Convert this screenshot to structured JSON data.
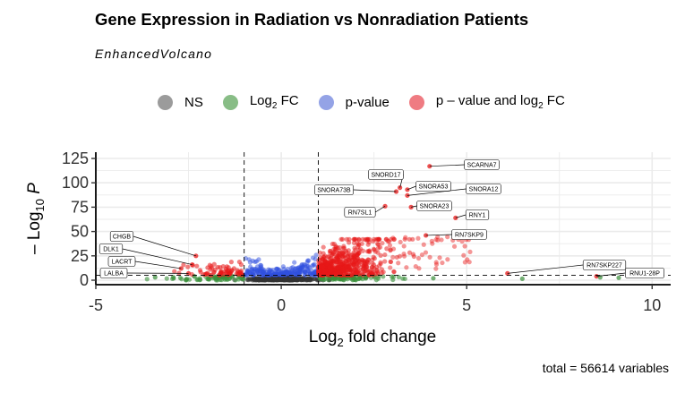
{
  "title": "Gene Expression in Radiation vs Nonradiation Patients",
  "subtitle": "EnhancedVolcano",
  "caption": "total = 56614 variables",
  "legend": [
    {
      "label": "NS",
      "sub": "",
      "suffix": "",
      "color": "#9b9b9b"
    },
    {
      "label": "Log",
      "sub": "2",
      "suffix": " FC",
      "color": "#88bd86"
    },
    {
      "label": "p-value",
      "sub": "",
      "suffix": "",
      "color": "#94a3e6"
    },
    {
      "label": "p – value and log",
      "sub": "2",
      "suffix": " FC",
      "color": "#ef7b82"
    }
  ],
  "chart_data": {
    "type": "scatter",
    "title": "Gene Expression in Radiation vs Nonradiation Patients",
    "subtitle": "EnhancedVolcano",
    "xlabel": "Log2 fold change",
    "ylabel": "– Log10 P",
    "xlim": [
      -5,
      10.5
    ],
    "ylim": [
      0,
      125
    ],
    "x_ticks": [
      -5,
      0,
      5,
      10
    ],
    "y_ticks": [
      0,
      25,
      50,
      75,
      100,
      125
    ],
    "fc_cutoff": [
      -1,
      1
    ],
    "p_cutoff_neglog10": 5,
    "grid": true,
    "legend_position": "top",
    "colors": {
      "NS": "#333333",
      "FC": "#3a8f3a",
      "P": "#3050e0",
      "FC_P": "#e81818"
    },
    "labeled_genes": [
      {
        "gene": "SCARNA7",
        "x": 4.0,
        "y": 117
      },
      {
        "gene": "SNORD17",
        "x": 3.2,
        "y": 95
      },
      {
        "gene": "SNORA53",
        "x": 3.4,
        "y": 93
      },
      {
        "gene": "SNORA73B",
        "x": 3.1,
        "y": 91
      },
      {
        "gene": "SNORA12",
        "x": 3.4,
        "y": 87
      },
      {
        "gene": "RN7SL1",
        "x": 2.8,
        "y": 76
      },
      {
        "gene": "SNORA23",
        "x": 3.5,
        "y": 75
      },
      {
        "gene": "RNY1",
        "x": 4.7,
        "y": 64
      },
      {
        "gene": "RN7SKP9",
        "x": 3.9,
        "y": 46
      },
      {
        "gene": "RN7SKP227",
        "x": 6.1,
        "y": 7
      },
      {
        "gene": "RNU1-28P",
        "x": 8.5,
        "y": 4
      },
      {
        "gene": "CHGB",
        "x": -2.3,
        "y": 25
      },
      {
        "gene": "DLK1",
        "x": -2.4,
        "y": 16
      },
      {
        "gene": "LACRT",
        "x": -2.7,
        "y": 12
      },
      {
        "gene": "LALBA",
        "x": -2.5,
        "y": 7
      }
    ]
  }
}
